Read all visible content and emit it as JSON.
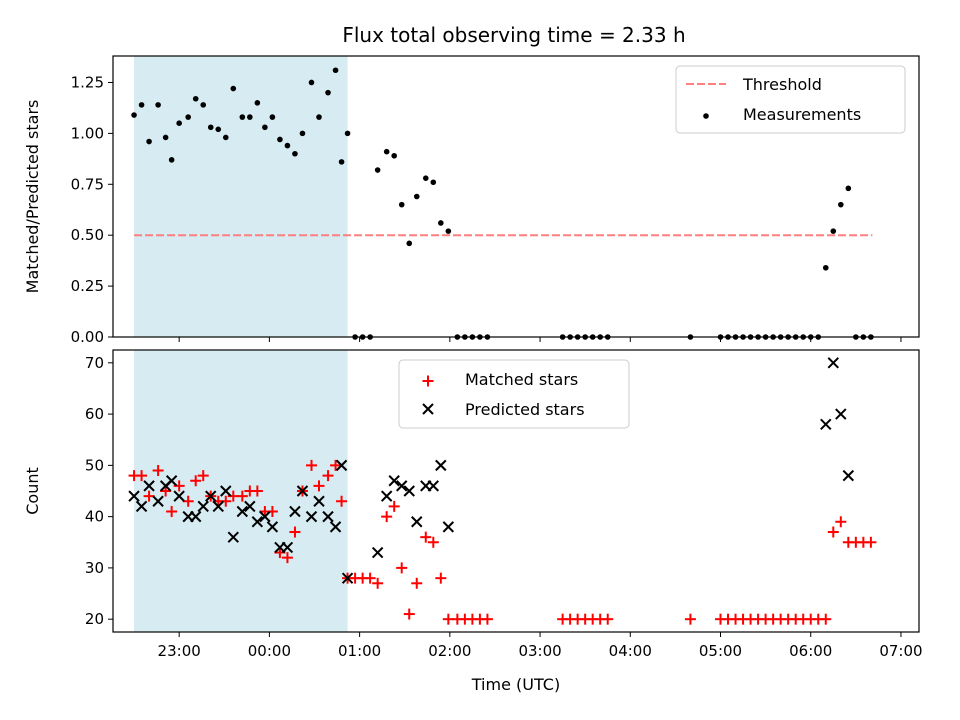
{
  "title": "Flux total observing time = 2.33 h",
  "colors": {
    "threshold": "#ff7f7f",
    "measurement": "#000000",
    "matched": "#ff0000",
    "predicted": "#000000",
    "span": "#add8e6"
  },
  "chart_data": [
    {
      "type": "scatter",
      "ylabel": "Matched/Predicted stars",
      "xlabel": "",
      "xlim": [
        "22:16",
        "07:12"
      ],
      "ylim": [
        0,
        1.38
      ],
      "xticks": [
        "23:00",
        "00:00",
        "01:00",
        "02:00",
        "03:00",
        "04:00",
        "05:00",
        "06:00",
        "07:00"
      ],
      "yticks": [
        "0.00",
        "0.25",
        "0.50",
        "0.75",
        "1.00",
        "1.25"
      ],
      "shaded_span": [
        "22:30",
        "00:52"
      ],
      "legend_position": "upper right",
      "threshold": {
        "name": "Threshold",
        "y": 0.5,
        "x_range": [
          "22:30",
          "06:41"
        ],
        "style": "dashed"
      },
      "series": [
        {
          "name": "Measurements",
          "marker": "dot",
          "x": [
            "22:30",
            "22:35",
            "22:40",
            "22:46",
            "22:51",
            "22:55",
            "23:00",
            "23:06",
            "23:11",
            "23:16",
            "23:21",
            "23:26",
            "23:31",
            "23:36",
            "23:42",
            "23:47",
            "23:52",
            "23:57",
            "00:02",
            "00:07",
            "00:12",
            "00:17",
            "00:22",
            "00:28",
            "00:33",
            "00:39",
            "00:44",
            "00:48",
            "00:52",
            "00:57",
            "01:02",
            "01:07",
            "01:12",
            "01:18",
            "01:23",
            "01:28",
            "01:33",
            "01:38",
            "01:44",
            "01:49",
            "01:54",
            "01:59",
            "02:05",
            "02:10",
            "02:15",
            "02:20",
            "02:25",
            "03:15",
            "03:20",
            "03:25",
            "03:30",
            "03:35",
            "03:40",
            "03:45",
            "04:40",
            "05:00",
            "05:05",
            "05:10",
            "05:15",
            "05:20",
            "05:25",
            "05:30",
            "05:35",
            "05:40",
            "05:45",
            "05:50",
            "05:55",
            "06:00",
            "06:05",
            "06:10",
            "06:15",
            "06:20",
            "06:25",
            "06:30",
            "06:35",
            "06:40"
          ],
          "y": [
            1.09,
            1.14,
            0.96,
            1.14,
            0.98,
            0.87,
            1.05,
            1.08,
            1.17,
            1.14,
            1.03,
            1.02,
            0.98,
            1.22,
            1.08,
            1.08,
            1.15,
            1.03,
            1.08,
            0.97,
            0.94,
            0.9,
            1.0,
            1.25,
            1.08,
            1.2,
            1.31,
            0.86,
            1.0,
            0.0,
            0.0,
            0.0,
            0.82,
            0.91,
            0.89,
            0.65,
            0.46,
            0.69,
            0.78,
            0.76,
            0.56,
            0.52,
            0.0,
            0.0,
            0.0,
            0.0,
            0.0,
            0.0,
            0.0,
            0.0,
            0.0,
            0.0,
            0.0,
            0.0,
            0.0,
            0.0,
            0.0,
            0.0,
            0.0,
            0.0,
            0.0,
            0.0,
            0.0,
            0.0,
            0.0,
            0.0,
            0.0,
            0.0,
            0.0,
            0.34,
            0.52,
            0.65,
            0.73,
            0.0,
            0.0,
            0.0
          ]
        }
      ]
    },
    {
      "type": "scatter",
      "ylabel": "Count",
      "xlabel": "Time (UTC)",
      "xlim": [
        "22:16",
        "07:12"
      ],
      "ylim": [
        17.5,
        72.5
      ],
      "xticks": [
        "23:00",
        "00:00",
        "01:00",
        "02:00",
        "03:00",
        "04:00",
        "05:00",
        "06:00",
        "07:00"
      ],
      "yticks": [
        "20",
        "30",
        "40",
        "50",
        "60",
        "70"
      ],
      "shaded_span": [
        "22:30",
        "00:52"
      ],
      "legend_position": "upper center",
      "series": [
        {
          "name": "Matched stars",
          "marker": "plus",
          "x": [
            "22:30",
            "22:35",
            "22:40",
            "22:46",
            "22:51",
            "22:55",
            "23:00",
            "23:06",
            "23:11",
            "23:16",
            "23:21",
            "23:26",
            "23:31",
            "23:36",
            "23:42",
            "23:47",
            "23:52",
            "23:57",
            "00:02",
            "00:07",
            "00:12",
            "00:17",
            "00:22",
            "00:28",
            "00:33",
            "00:39",
            "00:44",
            "00:48",
            "00:52",
            "00:57",
            "01:02",
            "01:07",
            "01:12",
            "01:18",
            "01:23",
            "01:28",
            "01:33",
            "01:38",
            "01:44",
            "01:49",
            "01:54",
            "01:59",
            "02:05",
            "02:10",
            "02:15",
            "02:20",
            "02:25",
            "03:15",
            "03:20",
            "03:25",
            "03:30",
            "03:35",
            "03:40",
            "03:45",
            "04:40",
            "05:00",
            "05:05",
            "05:10",
            "05:15",
            "05:20",
            "05:25",
            "05:30",
            "05:35",
            "05:40",
            "05:45",
            "05:50",
            "05:55",
            "06:00",
            "06:05",
            "06:10",
            "06:15",
            "06:20",
            "06:25",
            "06:30",
            "06:35",
            "06:40"
          ],
          "y": [
            48,
            48,
            44,
            49,
            45,
            41,
            46,
            43,
            47,
            48,
            44,
            43,
            43,
            44,
            44,
            45,
            45,
            41,
            41,
            33,
            32,
            37,
            45,
            50,
            46,
            48,
            50,
            43,
            28,
            28,
            28,
            28,
            27,
            40,
            42,
            30,
            21,
            27,
            36,
            35,
            28,
            20,
            20,
            20,
            20,
            20,
            20,
            20,
            20,
            20,
            20,
            20,
            20,
            20,
            20,
            20,
            20,
            20,
            20,
            20,
            20,
            20,
            20,
            20,
            20,
            20,
            20,
            20,
            20,
            20,
            37,
            39,
            35,
            35,
            35,
            35
          ]
        },
        {
          "name": "Predicted stars",
          "marker": "x",
          "x": [
            "22:30",
            "22:35",
            "22:40",
            "22:46",
            "22:51",
            "22:55",
            "23:00",
            "23:06",
            "23:11",
            "23:16",
            "23:21",
            "23:26",
            "23:31",
            "23:36",
            "23:42",
            "23:47",
            "23:52",
            "23:57",
            "00:02",
            "00:07",
            "00:12",
            "00:17",
            "00:22",
            "00:28",
            "00:33",
            "00:39",
            "00:44",
            "00:48",
            "00:52",
            "01:12",
            "01:18",
            "01:23",
            "01:28",
            "01:33",
            "01:38",
            "01:44",
            "01:49",
            "01:54",
            "01:59",
            "06:10",
            "06:15",
            "06:20",
            "06:25"
          ],
          "y": [
            44,
            42,
            46,
            43,
            46,
            47,
            44,
            40,
            40,
            42,
            44,
            42,
            45,
            36,
            41,
            42,
            39,
            40,
            38,
            34,
            34,
            41,
            45,
            40,
            43,
            40,
            38,
            50,
            28,
            33,
            44,
            47,
            46,
            45,
            39,
            46,
            46,
            50,
            38,
            58,
            70,
            60,
            48
          ]
        }
      ]
    }
  ]
}
